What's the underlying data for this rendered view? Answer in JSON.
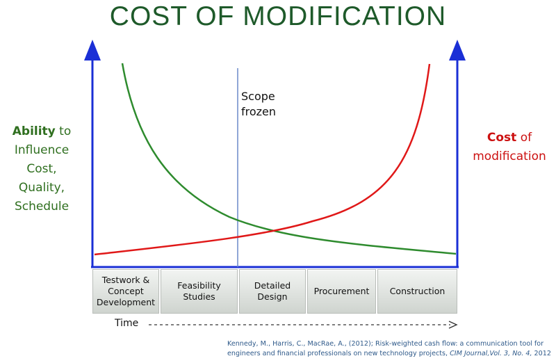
{
  "title": "COST OF MODIFICATION",
  "left_label": {
    "strong": "Ability",
    "rest_first": " to",
    "lines": [
      "Influence",
      "Cost,",
      "Quality,",
      "Schedule"
    ]
  },
  "right_label": {
    "strong": "Cost",
    "rest_first": " of",
    "line2": "modification"
  },
  "scope_marker": {
    "line1": "Scope",
    "line2": "frozen"
  },
  "phases": [
    {
      "line1": "Testwork &",
      "line2": "Concept",
      "line3": "Development"
    },
    {
      "line1": "Feasibility",
      "line2": "Studies",
      "line3": ""
    },
    {
      "line1": "Detailed",
      "line2": "Design",
      "line3": ""
    },
    {
      "line1": "Procurement",
      "line2": "",
      "line3": ""
    },
    {
      "line1": "Construction",
      "line2": "",
      "line3": ""
    }
  ],
  "time_label": "Time",
  "citation": {
    "text": "Kennedy, M., Harris, C., MacRae, A., (2012); Risk-weighted cash flow: a communication tool for engineers and financial professionals on new technology projects, ",
    "journal": "CIM Journal,Vol. 3, No. 4,",
    "year": " 2012"
  },
  "colors": {
    "title": "#1e5a2a",
    "ability_curve": "#2e8b2e",
    "cost_curve": "#e01818",
    "axes": "#1a2fd6",
    "scope_line": "#6a88c8"
  }
}
